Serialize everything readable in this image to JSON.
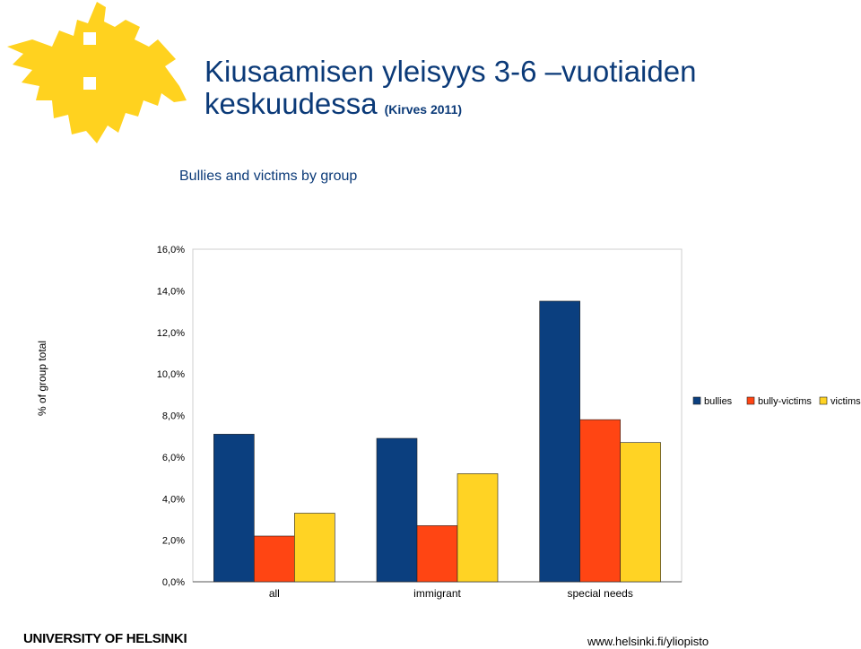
{
  "slide": {
    "title_line1": "Kiusaamisen yleisyys 3-6 –vuotiaiden",
    "title_line2": "keskuudessa",
    "title_ref": "(Kirves 2011)",
    "logo_icon": "flame-cross-logo-icon"
  },
  "chart_data": {
    "type": "bar",
    "title": "Bullies and victims by group",
    "xlabel": "",
    "ylabel": "% of group total",
    "ylim": [
      0,
      16
    ],
    "yticks": [
      "0,0%",
      "2,0%",
      "4,0%",
      "6,0%",
      "8,0%",
      "10,0%",
      "12,0%",
      "14,0%",
      "16,0%"
    ],
    "categories": [
      "all",
      "immigrant",
      "special needs"
    ],
    "series": [
      {
        "name": "bullies",
        "color": "#0b3f7f",
        "values": [
          7.1,
          6.9,
          13.5
        ]
      },
      {
        "name": "bully-victims",
        "color": "#ff4513",
        "values": [
          2.2,
          2.7,
          7.8
        ]
      },
      {
        "name": "victims",
        "color": "#ffd324",
        "values": [
          3.3,
          5.2,
          6.7
        ]
      }
    ],
    "legend_position": "right",
    "grid": false
  },
  "footer": {
    "university": "UNIVERSITY OF HELSINKI",
    "url": "www.helsinki.fi/yliopisto"
  }
}
